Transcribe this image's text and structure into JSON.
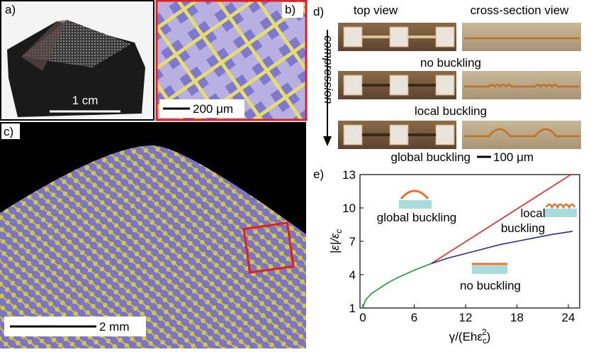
{
  "panels": {
    "a": {
      "label": "a)",
      "scale_bar": "1 cm"
    },
    "b": {
      "label": "b)",
      "scale_bar": "200 μm"
    },
    "c": {
      "label": "c)",
      "scale_bar": "2 mm"
    },
    "d": {
      "label": "d)",
      "top_view": "top view",
      "cross_section": "cross-section view",
      "arrow_label": "compression",
      "states": [
        "no buckling",
        "local buckling",
        "global buckling"
      ],
      "scale_bar": "100 μm"
    }
  },
  "chart_data": {
    "type": "line",
    "label": "e)",
    "x_label": [
      "γ/(Ehε",
      "c",
      "2",
      ")"
    ],
    "y_label": [
      "|ε|/ε",
      "c"
    ],
    "xlim": [
      0,
      25
    ],
    "ylim": [
      1,
      13
    ],
    "xticks": [
      0,
      6,
      12,
      18,
      24
    ],
    "yticks": [
      1,
      4,
      7,
      10,
      13
    ],
    "series": [
      {
        "color": "#1a9a3a",
        "x": [
          0,
          0.3,
          1,
          2,
          3,
          4,
          5,
          6,
          7,
          8
        ],
        "values": [
          1,
          1.7,
          2.3,
          2.8,
          3.3,
          3.7,
          4.05,
          4.4,
          4.7,
          5
        ]
      },
      {
        "color": "#e8262a",
        "x": [
          8,
          24.3
        ],
        "values": [
          5,
          13
        ]
      },
      {
        "color": "#2e2d8c",
        "x": [
          8,
          10,
          12,
          14,
          16,
          18,
          20,
          22,
          24.5
        ],
        "values": [
          5,
          5.5,
          5.9,
          6.3,
          6.7,
          7,
          7.3,
          7.6,
          7.9
        ]
      }
    ],
    "annotations": [
      "global buckling",
      "local",
      "buckling",
      "no buckling"
    ]
  }
}
